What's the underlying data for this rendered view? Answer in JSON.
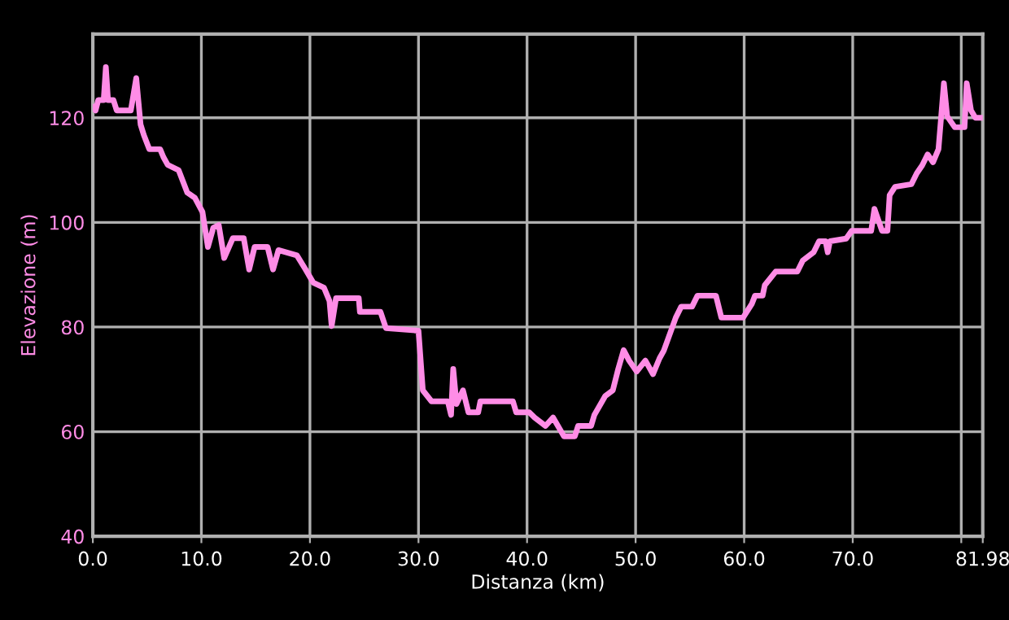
{
  "chart_data": {
    "type": "line",
    "xlabel": "Distanza (km)",
    "ylabel": "Elevazione (m)",
    "xlim": [
      0,
      81.98
    ],
    "ylim": [
      40,
      136
    ],
    "xticks": [
      {
        "value": 0,
        "label": "0.0"
      },
      {
        "value": 10,
        "label": "10.0"
      },
      {
        "value": 20,
        "label": "20.0"
      },
      {
        "value": 30,
        "label": "30.0"
      },
      {
        "value": 40,
        "label": "40.0"
      },
      {
        "value": 50,
        "label": "50.0"
      },
      {
        "value": 60,
        "label": "60.0"
      },
      {
        "value": 70,
        "label": "70.0"
      },
      {
        "value": 80,
        "label": null
      },
      {
        "value": 81.98,
        "label": "81.98"
      }
    ],
    "yticks": [
      40,
      60,
      80,
      100,
      120
    ],
    "grid": true,
    "marker": "none",
    "line_style": "solid",
    "series": [
      {
        "color": "#ff8ce6",
        "x": [
          0,
          0.25,
          0.5,
          1.0,
          1.2,
          1.4,
          1.9,
          2.2,
          3.5,
          4.0,
          4.4,
          4.7,
          5.2,
          6.2,
          6.5,
          6.9,
          7.9,
          8.7,
          9.4,
          10.1,
          10.6,
          11.1,
          11.6,
          12.1,
          12.9,
          13.9,
          14.4,
          14.9,
          16.1,
          16.6,
          17.1,
          18.8,
          19.6,
          20.3,
          21.3,
          21.8,
          22.0,
          22.4,
          24.5,
          24.6,
          26.5,
          27.0,
          30.0,
          30.4,
          31.2,
          32.7,
          33.0,
          33.2,
          33.5,
          34.1,
          34.6,
          35.5,
          35.7,
          38.7,
          39.0,
          40.2,
          40.7,
          41.7,
          42.4,
          43.4,
          44.4,
          44.7,
          45.9,
          46.2,
          47.2,
          47.9,
          48.4,
          48.9,
          49.4,
          50.1,
          50.9,
          51.6,
          52.2,
          52.6,
          53.7,
          54.2,
          55.2,
          55.7,
          57.4,
          57.9,
          59.9,
          60.7,
          61.0,
          61.7,
          61.9,
          62.9,
          64.9,
          65.4,
          66.4,
          66.9,
          67.5,
          67.7,
          67.9,
          69.4,
          69.9,
          71.7,
          72.0,
          72.7,
          73.2,
          73.4,
          73.9,
          75.4,
          75.9,
          76.4,
          76.9,
          77.4,
          77.9,
          78.4,
          78.7,
          79.4,
          80.3,
          80.5,
          80.9,
          81.3,
          81.98
        ],
        "values": [
          122,
          121.4,
          123.4,
          123.4,
          129.7,
          123.4,
          123.4,
          121.4,
          121.4,
          127.6,
          118.7,
          116.7,
          114,
          114,
          112.5,
          111,
          110,
          105.7,
          104.7,
          102,
          95.3,
          99,
          99.5,
          93.2,
          97,
          97,
          91,
          95.3,
          95.3,
          91,
          94.7,
          93.7,
          91,
          88.5,
          87.5,
          85,
          80.2,
          85.5,
          85.5,
          82.9,
          82.9,
          79.8,
          79.3,
          67.9,
          65.8,
          65.8,
          63.2,
          72,
          65.3,
          67.9,
          63.7,
          63.7,
          65.8,
          65.8,
          63.7,
          63.7,
          62.7,
          61.1,
          62.7,
          59.1,
          59.1,
          61.1,
          61.1,
          63.2,
          66.8,
          67.9,
          72,
          75.6,
          73.6,
          71.5,
          73.6,
          71,
          74,
          75.5,
          81.8,
          83.9,
          83.9,
          86,
          86,
          81.8,
          81.8,
          84.4,
          86,
          86,
          88,
          90.6,
          90.6,
          92.7,
          94.3,
          96.4,
          96.4,
          94.3,
          96.4,
          96.9,
          98.4,
          98.4,
          102.6,
          98.4,
          98.4,
          105.2,
          106.8,
          107.3,
          109.4,
          110.9,
          113,
          111.5,
          114,
          126.6,
          120.3,
          118.2,
          118.2,
          126.6,
          121.4,
          120,
          120
        ]
      }
    ]
  }
}
